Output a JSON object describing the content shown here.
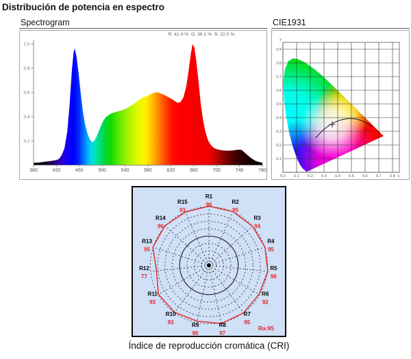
{
  "page": {
    "title": "Distribución de potencia en espectro",
    "caption": "Índice de reproducción cromática (CRI)"
  },
  "spectrogram_panel": {
    "header": "Spectrogram",
    "rgb_summary": "R: 41.4 %  G: 36.1 %  B: 22.5 %"
  },
  "cie_panel": {
    "header": "CIE1931"
  },
  "cri_panel": {
    "ra_label": "Ra:95"
  },
  "chart_data": [
    {
      "type": "area",
      "name": "spectral-power-distribution",
      "rgb_percent": {
        "R": 41.4,
        "G": 36.1,
        "B": 22.5
      },
      "xlim": [
        380,
        780
      ],
      "ylim": [
        0,
        1.0
      ],
      "x_ticks": [
        380,
        420,
        460,
        500,
        540,
        580,
        620,
        660,
        700,
        740,
        780
      ],
      "y_ticks": [
        0.2,
        0.4,
        0.6,
        0.8,
        1.0
      ],
      "points": [
        [
          380,
          0.02
        ],
        [
          390,
          0.022
        ],
        [
          400,
          0.028
        ],
        [
          410,
          0.034
        ],
        [
          418,
          0.04
        ],
        [
          424,
          0.05
        ],
        [
          429,
          0.08
        ],
        [
          434,
          0.14
        ],
        [
          439,
          0.28
        ],
        [
          443,
          0.5
        ],
        [
          447,
          0.78
        ],
        [
          450,
          0.93
        ],
        [
          452,
          0.965
        ],
        [
          455,
          0.9
        ],
        [
          458,
          0.79
        ],
        [
          462,
          0.61
        ],
        [
          466,
          0.45
        ],
        [
          470,
          0.34
        ],
        [
          474,
          0.265
        ],
        [
          478,
          0.215
        ],
        [
          482,
          0.19
        ],
        [
          486,
          0.2
        ],
        [
          491,
          0.245
        ],
        [
          496,
          0.305
        ],
        [
          501,
          0.36
        ],
        [
          507,
          0.4
        ],
        [
          513,
          0.42
        ],
        [
          519,
          0.432
        ],
        [
          526,
          0.442
        ],
        [
          534,
          0.452
        ],
        [
          541,
          0.465
        ],
        [
          549,
          0.487
        ],
        [
          557,
          0.512
        ],
        [
          565,
          0.54
        ],
        [
          572,
          0.56
        ],
        [
          579,
          0.573
        ],
        [
          586,
          0.59
        ],
        [
          592,
          0.6
        ],
        [
          598,
          0.6
        ],
        [
          604,
          0.59
        ],
        [
          610,
          0.576
        ],
        [
          616,
          0.56
        ],
        [
          622,
          0.545
        ],
        [
          627,
          0.528
        ],
        [
          632,
          0.515
        ],
        [
          637,
          0.522
        ],
        [
          642,
          0.56
        ],
        [
          647,
          0.65
        ],
        [
          651,
          0.78
        ],
        [
          655,
          0.92
        ],
        [
          658,
          1.0
        ],
        [
          661,
          0.975
        ],
        [
          664,
          0.88
        ],
        [
          668,
          0.71
        ],
        [
          672,
          0.52
        ],
        [
          676,
          0.38
        ],
        [
          680,
          0.285
        ],
        [
          685,
          0.205
        ],
        [
          690,
          0.165
        ],
        [
          696,
          0.14
        ],
        [
          703,
          0.128
        ],
        [
          712,
          0.121
        ],
        [
          722,
          0.119
        ],
        [
          730,
          0.122
        ],
        [
          738,
          0.128
        ],
        [
          744,
          0.125
        ],
        [
          750,
          0.1
        ],
        [
          756,
          0.075
        ],
        [
          762,
          0.052
        ],
        [
          768,
          0.035
        ],
        [
          774,
          0.026
        ],
        [
          780,
          0.02
        ]
      ],
      "gradient": [
        [
          380,
          "#000000"
        ],
        [
          400,
          "#10001c"
        ],
        [
          412,
          "#21004a"
        ],
        [
          422,
          "#3300a8"
        ],
        [
          432,
          "#2500e0"
        ],
        [
          442,
          "#0b00ff"
        ],
        [
          450,
          "#0000ff"
        ],
        [
          458,
          "#0022ff"
        ],
        [
          466,
          "#0066ff"
        ],
        [
          474,
          "#00aaff"
        ],
        [
          481,
          "#00d8e8"
        ],
        [
          488,
          "#00e4b4"
        ],
        [
          496,
          "#00dc78"
        ],
        [
          505,
          "#00d838"
        ],
        [
          515,
          "#10dc00"
        ],
        [
          525,
          "#46e600"
        ],
        [
          538,
          "#85ee00"
        ],
        [
          552,
          "#c0f600"
        ],
        [
          564,
          "#e8fa00"
        ],
        [
          575,
          "#fff200"
        ],
        [
          584,
          "#ffcf00"
        ],
        [
          593,
          "#ffa000"
        ],
        [
          602,
          "#ff7100"
        ],
        [
          611,
          "#ff4200"
        ],
        [
          620,
          "#ff1800"
        ],
        [
          632,
          "#ff0000"
        ],
        [
          688,
          "#f00000"
        ],
        [
          700,
          "#c00000"
        ],
        [
          712,
          "#8a0000"
        ],
        [
          724,
          "#5a0000"
        ],
        [
          736,
          "#3a0000"
        ],
        [
          748,
          "#240000"
        ],
        [
          762,
          "#100000"
        ],
        [
          780,
          "#000000"
        ]
      ]
    },
    {
      "type": "scatter",
      "name": "cie1931-chromaticity",
      "xlim": [
        0,
        0.85
      ],
      "ylim": [
        0,
        0.95
      ],
      "x_ticks": [
        "0.0",
        "0.1",
        "0.2",
        "0.3",
        "0.4",
        "0.5",
        "0.6",
        "0.7",
        "0.8"
      ],
      "y_ticks": [
        "0.1",
        "0.2",
        "0.3",
        "0.4",
        "0.5",
        "0.6",
        "0.7",
        "0.8",
        "0.9"
      ],
      "x_axis_letter": "x",
      "y_axis_letter": "y",
      "grid": true,
      "white_point": [
        0.36,
        0.35
      ],
      "planckian_bezier": [
        [
          0.24,
          0.252
        ],
        [
          0.36,
          0.4
        ],
        [
          0.52,
          0.44
        ],
        [
          0.655,
          0.33
        ]
      ],
      "locus": [
        [
          0.1741,
          0.005
        ],
        [
          0.1721,
          0.0048
        ],
        [
          0.1689,
          0.0069
        ],
        [
          0.1644,
          0.0109
        ],
        [
          0.1566,
          0.0177
        ],
        [
          0.144,
          0.0297
        ],
        [
          0.1241,
          0.0578
        ],
        [
          0.1096,
          0.0868
        ],
        [
          0.0913,
          0.1327
        ],
        [
          0.0687,
          0.2007
        ],
        [
          0.0454,
          0.295
        ],
        [
          0.0235,
          0.4127
        ],
        [
          0.0082,
          0.5384
        ],
        [
          0.0039,
          0.6548
        ],
        [
          0.0139,
          0.7502
        ],
        [
          0.0389,
          0.812
        ],
        [
          0.0743,
          0.8338
        ],
        [
          0.1142,
          0.8262
        ],
        [
          0.1547,
          0.8059
        ],
        [
          0.1929,
          0.7816
        ],
        [
          0.2296,
          0.7543
        ],
        [
          0.2658,
          0.7243
        ],
        [
          0.3016,
          0.6923
        ],
        [
          0.3373,
          0.6589
        ],
        [
          0.3731,
          0.6245
        ],
        [
          0.4087,
          0.5896
        ],
        [
          0.4441,
          0.5547
        ],
        [
          0.4788,
          0.5202
        ],
        [
          0.5125,
          0.4866
        ],
        [
          0.5448,
          0.4544
        ],
        [
          0.5752,
          0.4242
        ],
        [
          0.6029,
          0.3965
        ],
        [
          0.627,
          0.3725
        ],
        [
          0.6482,
          0.3514
        ],
        [
          0.6658,
          0.334
        ],
        [
          0.6915,
          0.3083
        ],
        [
          0.7079,
          0.292
        ],
        [
          0.723,
          0.277
        ],
        [
          0.7347,
          0.2653
        ]
      ]
    },
    {
      "type": "radar",
      "name": "cri-values",
      "categories": [
        "R1",
        "R2",
        "R3",
        "R4",
        "R5",
        "R6",
        "R7",
        "R8",
        "R9",
        "R10",
        "R11",
        "R12",
        "R13",
        "R14",
        "R15"
      ],
      "values": [
        96,
        95,
        94,
        95,
        96,
        92,
        95,
        97,
        90,
        93,
        93,
        77,
        95,
        96,
        93
      ],
      "ra_value": 95,
      "max": 100,
      "rings": 8,
      "accent": "#e62222",
      "bg": "#cfe0f7"
    }
  ]
}
